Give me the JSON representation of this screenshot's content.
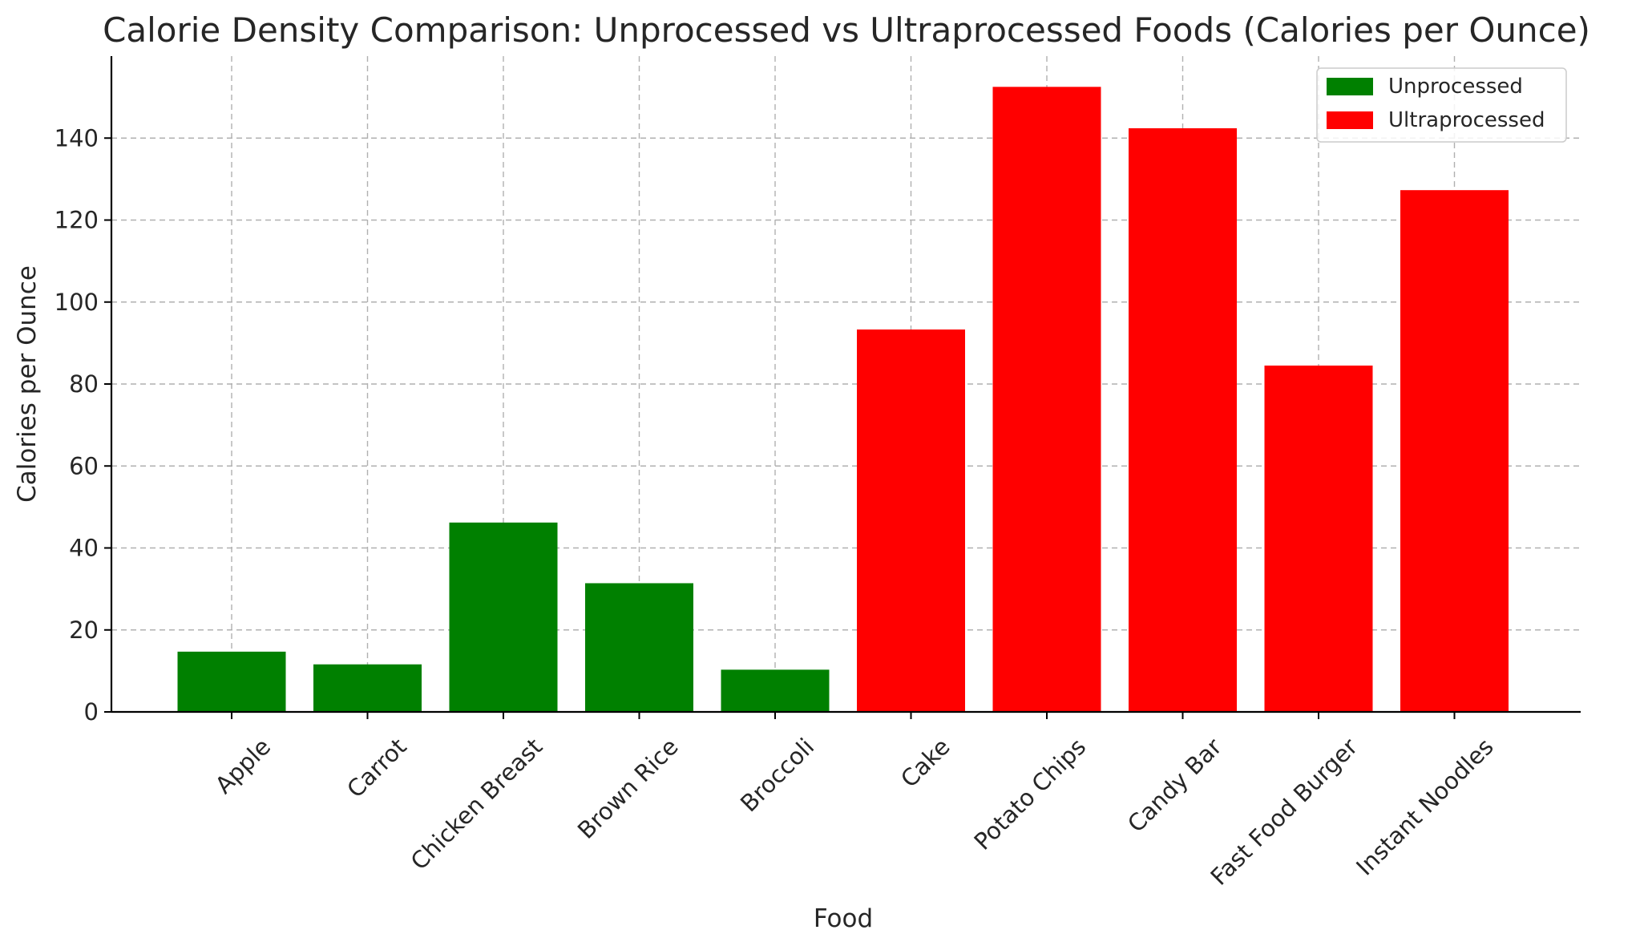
{
  "chart_data": {
    "type": "bar",
    "title": "Calorie Density Comparison: Unprocessed vs Ultraprocessed Foods (Calories per Ounce)",
    "xlabel": "Food",
    "ylabel": "Calories per Ounce",
    "ylim": [
      0,
      160
    ],
    "yticks": [
      0,
      20,
      40,
      60,
      80,
      100,
      120,
      140
    ],
    "grid": true,
    "legend_position": "top-right",
    "categories": [
      "Apple",
      "Carrot",
      "Chicken Breast",
      "Brown Rice",
      "Broccoli",
      "Cake",
      "Potato Chips",
      "Candy Bar",
      "Fast Food Burger",
      "Instant Noodles"
    ],
    "values": [
      14.7,
      11.6,
      46.2,
      31.4,
      10.3,
      93.3,
      152.5,
      142.4,
      84.5,
      127.3
    ],
    "groups": [
      "Unprocessed",
      "Unprocessed",
      "Unprocessed",
      "Unprocessed",
      "Unprocessed",
      "Ultraprocessed",
      "Ultraprocessed",
      "Ultraprocessed",
      "Ultraprocessed",
      "Ultraprocessed"
    ],
    "series": [
      {
        "name": "Unprocessed",
        "color": "#008000"
      },
      {
        "name": "Ultraprocessed",
        "color": "#ff0000"
      }
    ]
  }
}
